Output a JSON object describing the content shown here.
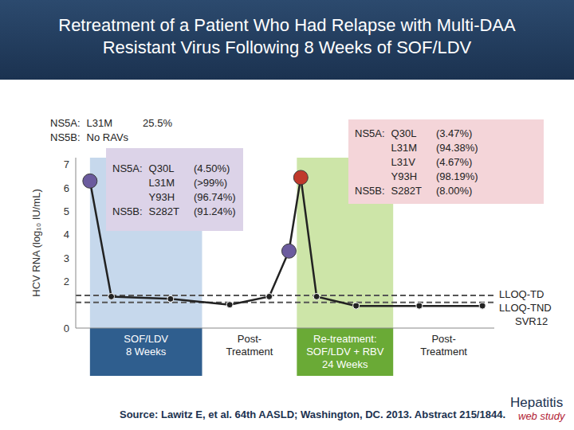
{
  "chart_data": {
    "type": "line",
    "title": "Retreatment of a Patient Who Had Relapse with Multi-DAA Resistant Virus Following 8 Weeks of SOF/LDV",
    "y_label": "HCV RNA (log₁₀ IU/mL)",
    "x": [
      1.8,
      4.5,
      12,
      19.5,
      24.5,
      27,
      28.5,
      30.5,
      35.5,
      43.5,
      51.5
    ],
    "values": [
      6.3,
      1.35,
      1.25,
      1.0,
      1.35,
      3.3,
      6.45,
      1.35,
      0.95,
      0.95,
      0.95
    ],
    "color": "#222222",
    "colors": [
      "#6b5b9e",
      "#222222",
      "#222222",
      "#222222",
      "#222222",
      "#6b5b9e",
      "#c0392b",
      "#222222",
      "#222222",
      "#222222",
      "#222222"
    ],
    "marker": "circle",
    "xlim": [
      0,
      53
    ],
    "ylim": [
      0,
      7.3
    ],
    "yticks": [
      0,
      2,
      3,
      4,
      5,
      6,
      7
    ],
    "tick_labels": "y",
    "grid": false,
    "reference_lines": [
      {
        "label": "LLOQ-TD",
        "value": 1.4,
        "line_style": "dashed"
      },
      {
        "label": "LLOQ-TND",
        "value": 1.1,
        "line_style": "dashed"
      }
    ],
    "phases": [
      {
        "label": [
          "SOF/LDV",
          "8 Weeks"
        ],
        "start": 1.8,
        "end": 16,
        "color": "#c6d8ec"
      },
      {
        "label": [
          "Post-",
          "Treatment"
        ],
        "start": 16,
        "end": 28
      },
      {
        "label": [
          "Re-treatment:",
          "SOF/LDV + RBV",
          "24 Weeks"
        ],
        "start": 28,
        "end": 40.2,
        "color": "#cde5a8"
      },
      {
        "label": [
          "Post-",
          "Treatment"
        ],
        "start": 40.2,
        "end": 53
      }
    ],
    "annotations": [
      {
        "rows": [
          {
            "gene": "NS5A:",
            "variant": "L31M",
            "frequency": "25.5%"
          },
          {
            "gene": "NS5B:",
            "variant": "No RAVs"
          }
        ]
      },
      {
        "rows": [
          {
            "gene": "NS5A:",
            "variant": "Q30L",
            "frequency": "(4.50%)"
          },
          {
            "variant": "L31M",
            "frequency": "(>99%)"
          },
          {
            "variant": "Y93H",
            "frequency": "(96.74%)"
          },
          {
            "gene": "NS5B:",
            "variant": "S282T",
            "frequency": "(91.24%)"
          }
        ]
      },
      {
        "rows": [
          {
            "gene": "NS5A:",
            "variant": "Q30L",
            "frequency": "(3.47%)"
          },
          {
            "variant": "L31M",
            "frequency": "(94.38%)"
          },
          {
            "variant": "L31V",
            "frequency": "(4.67%)"
          },
          {
            "variant": "Y93H",
            "frequency": "(98.19%)"
          },
          {
            "gene": "NS5B:",
            "variant": "S282T",
            "frequency": "(8.00%)"
          }
        ]
      },
      {
        "text": "SVR12"
      }
    ],
    "source": "Source: Lawitz E, et al. 64th AASLD; Washington, DC. 2013. Abstract 215/1844.",
    "logo": {
      "name": "Hepatitis",
      "tagline": "web study"
    }
  }
}
